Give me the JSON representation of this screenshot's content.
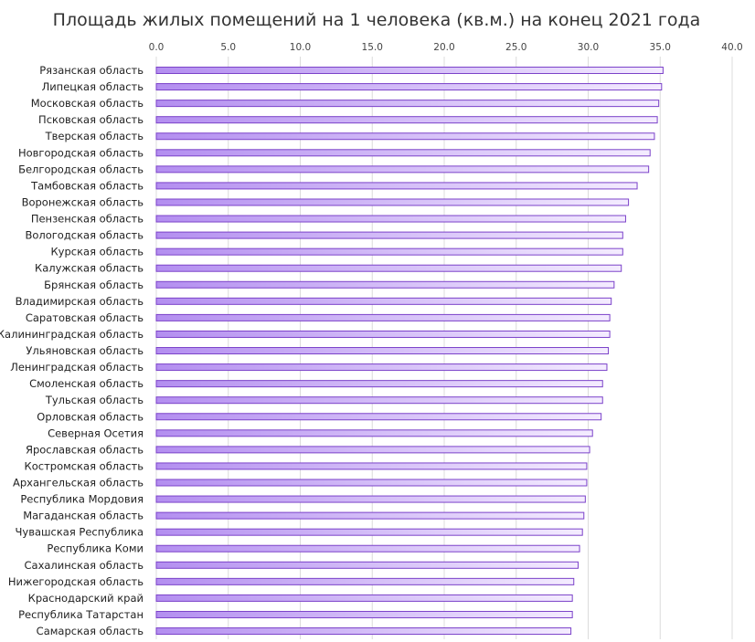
{
  "colors": {
    "bar_start": "#b38ef0",
    "bar_end": "#f4ecff",
    "bar_border": "#7b42c9",
    "grid": "#dcdcdc"
  },
  "chart_data": {
    "type": "bar",
    "orientation": "horizontal",
    "title": "Площадь жилых помещений на 1 человека (кв.м.) на конец 2021 года",
    "xlabel": "",
    "ylabel": "",
    "xlim": [
      0,
      40
    ],
    "x_ticks": [
      "0.0",
      "5.0",
      "10.0",
      "15.0",
      "20.0",
      "25.0",
      "30.0",
      "35.0",
      "40.0"
    ],
    "x_axis_position": "top",
    "grid": true,
    "categories": [
      "Рязанская область",
      "Липецкая область",
      "Московская область",
      "Псковская область",
      "Тверская область",
      "Новгородская область",
      "Белгородская область",
      "Тамбовская область",
      "Воронежская область",
      "Пензенская область",
      "Вологодская область",
      "Курская область",
      "Калужская область",
      "Брянская область",
      "Владимирская область",
      "Саратовская область",
      "Калининградская область",
      "Ульяновская область",
      "Ленинградская область",
      "Смоленская область",
      "Тульская область",
      "Орловская область",
      "Северная Осетия",
      "Ярославская область",
      "Костромская область",
      "Архангельская область",
      "Республика Мордовия",
      "Магаданская область",
      "Чувашская Республика",
      "Республика Коми",
      "Сахалинская область",
      "Нижегородская область",
      "Краснодарский край",
      "Республика Татарстан",
      "Самарская область"
    ],
    "values": [
      35.2,
      35.1,
      34.9,
      34.8,
      34.6,
      34.3,
      34.2,
      33.4,
      32.8,
      32.6,
      32.4,
      32.4,
      32.3,
      31.8,
      31.6,
      31.5,
      31.5,
      31.4,
      31.3,
      31.0,
      31.0,
      30.9,
      30.3,
      30.1,
      29.9,
      29.9,
      29.8,
      29.7,
      29.6,
      29.4,
      29.3,
      29.0,
      28.9,
      28.9,
      28.8
    ]
  }
}
